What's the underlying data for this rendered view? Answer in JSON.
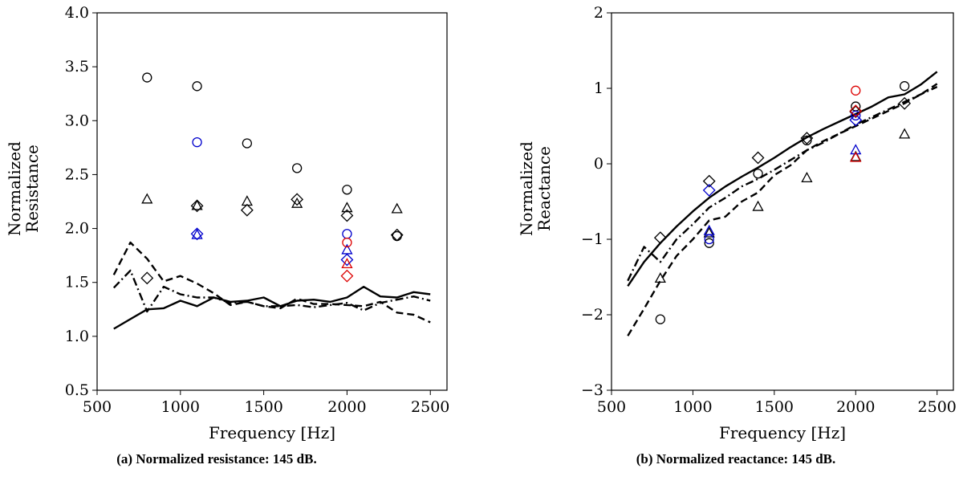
{
  "chart_data": [
    {
      "type": "line",
      "caption": "(a) Normalized resistance: 145 dB.",
      "xlabel": "Frequency [Hz]",
      "ylabel": [
        "Normalized",
        "Resistance"
      ],
      "xlim": [
        500,
        2600
      ],
      "ylim": [
        0.5,
        4.0
      ],
      "xticks": [
        500,
        1000,
        1500,
        2000,
        2500
      ],
      "xtick_labels": [
        "500",
        "1000",
        "1500",
        "2000",
        "2500"
      ],
      "yticks": [
        0.5,
        1.0,
        1.5,
        2.0,
        2.5,
        3.0,
        3.5,
        4.0
      ],
      "ytick_labels": [
        "0.5",
        "1.0",
        "1.5",
        "2.0",
        "2.5",
        "3.0",
        "3.5",
        "4.0"
      ],
      "grid": false,
      "series": [
        {
          "style": "solid",
          "color": "#000000",
          "x": [
            600,
            700,
            800,
            900,
            1000,
            1100,
            1200,
            1300,
            1400,
            1500,
            1600,
            1700,
            1800,
            1900,
            2000,
            2100,
            2200,
            2300,
            2400,
            2500
          ],
          "y": [
            1.07,
            1.16,
            1.25,
            1.26,
            1.33,
            1.28,
            1.36,
            1.32,
            1.33,
            1.36,
            1.28,
            1.33,
            1.34,
            1.32,
            1.36,
            1.46,
            1.37,
            1.36,
            1.41,
            1.39
          ]
        },
        {
          "style": "dashed",
          "color": "#000000",
          "x": [
            600,
            700,
            800,
            900,
            1000,
            1100,
            1200,
            1300,
            1400,
            1500,
            1600,
            1700,
            1800,
            1900,
            2000,
            2100,
            2200,
            2300,
            2400,
            2500
          ],
          "y": [
            1.57,
            1.87,
            1.72,
            1.51,
            1.56,
            1.49,
            1.4,
            1.29,
            1.32,
            1.28,
            1.26,
            1.35,
            1.3,
            1.3,
            1.29,
            1.28,
            1.32,
            1.22,
            1.2,
            1.13
          ]
        },
        {
          "style": "dashdot",
          "color": "#000000",
          "x": [
            600,
            700,
            800,
            900,
            1000,
            1100,
            1200,
            1300,
            1400,
            1500,
            1600,
            1700,
            1800,
            1900,
            2000,
            2100,
            2200,
            2300,
            2400,
            2500
          ],
          "y": [
            1.45,
            1.61,
            1.23,
            1.46,
            1.39,
            1.36,
            1.36,
            1.31,
            1.32,
            1.28,
            1.28,
            1.29,
            1.27,
            1.29,
            1.31,
            1.24,
            1.31,
            1.34,
            1.37,
            1.33
          ]
        }
      ],
      "markers": [
        {
          "marker": "circle",
          "color": "#000000",
          "x": [
            800,
            1100,
            1400,
            1700,
            2000,
            2300
          ],
          "y": [
            3.4,
            3.32,
            2.79,
            2.56,
            2.36,
            1.93
          ]
        },
        {
          "marker": "triangle",
          "color": "#000000",
          "x": [
            800,
            1100,
            1400,
            1700,
            2000,
            2300
          ],
          "y": [
            2.27,
            2.21,
            2.25,
            2.23,
            2.19,
            2.18
          ]
        },
        {
          "marker": "diamond",
          "color": "#000000",
          "x": [
            800,
            1100,
            1400,
            1700,
            2000,
            2300
          ],
          "y": [
            1.54,
            2.21,
            2.17,
            2.27,
            2.12,
            1.94
          ]
        },
        {
          "marker": "circle",
          "color": "#0000cc",
          "x": [
            1100,
            2000
          ],
          "y": [
            2.8,
            1.95
          ]
        },
        {
          "marker": "triangle",
          "color": "#0000cc",
          "x": [
            1100,
            2000
          ],
          "y": [
            1.94,
            1.8
          ]
        },
        {
          "marker": "diamond",
          "color": "#0000cc",
          "x": [
            1100,
            2000
          ],
          "y": [
            1.95,
            1.71
          ]
        },
        {
          "marker": "circle",
          "color": "#dd0000",
          "x": [
            2000
          ],
          "y": [
            1.87
          ]
        },
        {
          "marker": "triangle",
          "color": "#dd0000",
          "x": [
            2000
          ],
          "y": [
            1.67
          ]
        },
        {
          "marker": "diamond",
          "color": "#dd0000",
          "x": [
            2000
          ],
          "y": [
            1.56
          ]
        }
      ]
    },
    {
      "type": "line",
      "caption": "(b) Normalized reactance: 145 dB.",
      "xlabel": "Frequency [Hz]",
      "ylabel": [
        "Normalized",
        "Reactance"
      ],
      "xlim": [
        500,
        2600
      ],
      "ylim": [
        -3,
        2
      ],
      "xticks": [
        500,
        1000,
        1500,
        2000,
        2500
      ],
      "xtick_labels": [
        "500",
        "1000",
        "1500",
        "2000",
        "2500"
      ],
      "yticks": [
        -3,
        -2,
        -1,
        0,
        1,
        2
      ],
      "ytick_labels": [
        "−3",
        "−2",
        "−1",
        "0",
        "1",
        "2"
      ],
      "grid": false,
      "series": [
        {
          "style": "solid",
          "color": "#000000",
          "x": [
            600,
            700,
            800,
            900,
            1000,
            1100,
            1200,
            1300,
            1400,
            1500,
            1600,
            1700,
            1800,
            1900,
            2000,
            2100,
            2200,
            2300,
            2400,
            2500
          ],
          "y": [
            -1.62,
            -1.3,
            -1.05,
            -0.83,
            -0.63,
            -0.45,
            -0.3,
            -0.17,
            -0.05,
            0.08,
            0.22,
            0.35,
            0.46,
            0.56,
            0.66,
            0.76,
            0.88,
            0.92,
            1.05,
            1.22
          ]
        },
        {
          "style": "dashed",
          "color": "#000000",
          "x": [
            600,
            700,
            800,
            900,
            1000,
            1100,
            1200,
            1300,
            1400,
            1500,
            1600,
            1700,
            1800,
            1900,
            2000,
            2100,
            2200,
            2300,
            2400,
            2500
          ],
          "y": [
            -2.28,
            -1.92,
            -1.55,
            -1.22,
            -1.0,
            -0.75,
            -0.7,
            -0.5,
            -0.38,
            -0.15,
            -0.02,
            0.18,
            0.3,
            0.4,
            0.5,
            0.6,
            0.7,
            0.8,
            0.92,
            1.06
          ]
        },
        {
          "style": "dashdot",
          "color": "#000000",
          "x": [
            600,
            700,
            800,
            900,
            1000,
            1100,
            1200,
            1300,
            1400,
            1500,
            1600,
            1700,
            1800,
            1900,
            2000,
            2100,
            2200,
            2300,
            2400,
            2500
          ],
          "y": [
            -1.55,
            -1.1,
            -1.3,
            -1.0,
            -0.8,
            -0.58,
            -0.45,
            -0.3,
            -0.2,
            -0.08,
            0.05,
            0.18,
            0.28,
            0.4,
            0.52,
            0.62,
            0.72,
            0.82,
            0.92,
            1.02
          ]
        }
      ],
      "markers": [
        {
          "marker": "circle",
          "color": "#000000",
          "x": [
            800,
            1100,
            1400,
            1700,
            2000,
            2300
          ],
          "y": [
            -2.06,
            -1.05,
            -0.13,
            0.31,
            0.76,
            1.03
          ]
        },
        {
          "marker": "triangle",
          "color": "#000000",
          "x": [
            800,
            1100,
            1400,
            1700,
            2000,
            2300
          ],
          "y": [
            -1.52,
            -0.92,
            -0.57,
            -0.19,
            0.09,
            0.39
          ]
        },
        {
          "marker": "diamond",
          "color": "#000000",
          "x": [
            800,
            1100,
            1400,
            1700,
            2000,
            2300
          ],
          "y": [
            -0.98,
            -0.23,
            0.08,
            0.34,
            0.69,
            0.8
          ]
        },
        {
          "marker": "circle",
          "color": "#0000cc",
          "x": [
            1100,
            2000
          ],
          "y": [
            -1.0,
            0.64
          ]
        },
        {
          "marker": "triangle",
          "color": "#0000cc",
          "x": [
            1100,
            2000
          ],
          "y": [
            -0.89,
            0.18
          ]
        },
        {
          "marker": "diamond",
          "color": "#0000cc",
          "x": [
            1100,
            2000
          ],
          "y": [
            -0.35,
            0.58
          ]
        },
        {
          "marker": "circle",
          "color": "#dd0000",
          "x": [
            2000
          ],
          "y": [
            0.97
          ]
        },
        {
          "marker": "triangle",
          "color": "#dd0000",
          "x": [
            2000
          ],
          "y": [
            0.08
          ]
        },
        {
          "marker": "diamond",
          "color": "#dd0000",
          "x": [
            2000
          ],
          "y": [
            0.7
          ]
        }
      ]
    }
  ]
}
